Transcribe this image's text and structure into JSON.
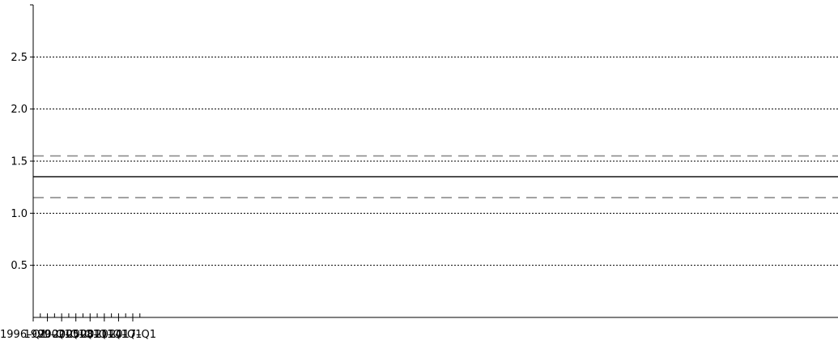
{
  "chart_data": {
    "type": "line",
    "title": "",
    "xlabel": "",
    "ylabel": "",
    "x_range": [
      "1996-Q1",
      "2019-Q1"
    ],
    "ylim": [
      0,
      3
    ],
    "grid": true,
    "x_tick_labels": [
      "1996–Q1",
      "1999–Q1",
      "2002–Q1",
      "2005–Q1",
      "2008–Q1",
      "2011–Q1",
      "2014–Q1",
      "2017–Q1"
    ],
    "y_tick_labels": [
      "0.5",
      "1.0",
      "1.5",
      "2.0",
      "2.5"
    ],
    "y_ticks": [
      0.5,
      1.0,
      1.5,
      2.0,
      2.5
    ],
    "series": [
      {
        "style": "solid",
        "color": "#000000",
        "x": [
          "1996-Q1",
          "2019-Q1"
        ],
        "y": [
          1.35,
          1.35
        ]
      },
      {
        "style": "dashed",
        "color": "#8c8c8c",
        "x": [
          "1996-Q1",
          "2019-Q1"
        ],
        "y": [
          1.55,
          1.55
        ]
      },
      {
        "style": "dashed",
        "color": "#8c8c8c",
        "x": [
          "1996-Q1",
          "2019-Q1"
        ],
        "y": [
          1.15,
          1.15
        ]
      }
    ]
  }
}
